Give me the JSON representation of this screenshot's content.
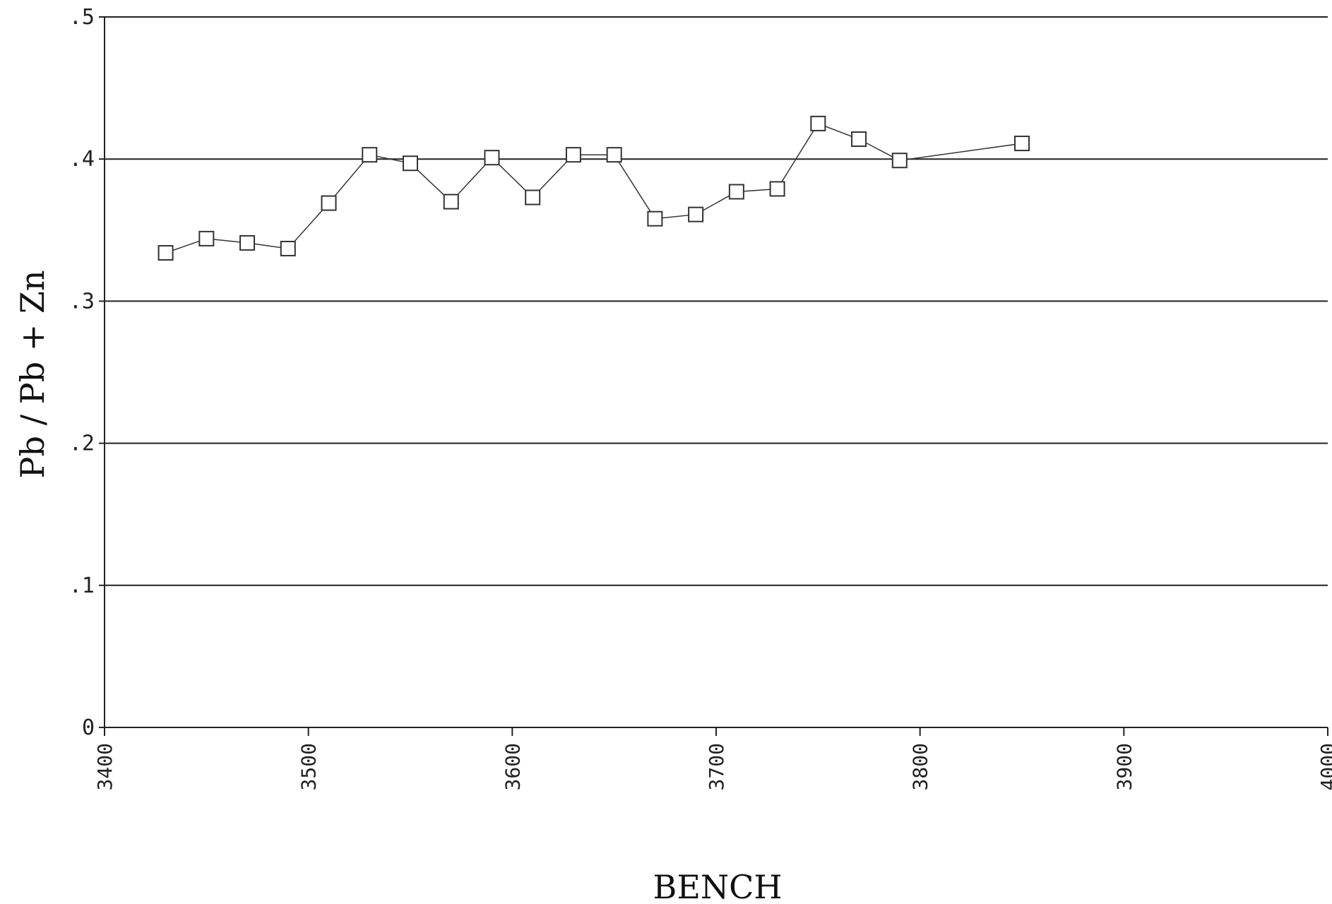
{
  "chart_data": {
    "type": "line",
    "xlabel": "BENCH",
    "ylabel": "Pb / Pb + Zn",
    "xlim": [
      3400,
      4000
    ],
    "ylim": [
      0,
      0.5
    ],
    "x_ticks": [
      "3400",
      "3500",
      "3600",
      "3700",
      "3800",
      "3900",
      "4000"
    ],
    "x_tick_values": [
      3400,
      3500,
      3600,
      3700,
      3800,
      3900,
      4000
    ],
    "y_ticks": [
      "0",
      ".1",
      ".2",
      ".3",
      ".4",
      ".5"
    ],
    "y_tick_values": [
      0,
      0.1,
      0.2,
      0.3,
      0.4,
      0.5
    ],
    "grid": "horizontal",
    "legend": "none",
    "series": [
      {
        "marker": "square",
        "color": "#333333",
        "x": [
          3430,
          3450,
          3470,
          3490,
          3510,
          3530,
          3550,
          3570,
          3590,
          3610,
          3630,
          3650,
          3670,
          3690,
          3710,
          3730,
          3750,
          3770,
          3790,
          3850
        ],
        "y": [
          0.334,
          0.344,
          0.341,
          0.337,
          0.369,
          0.403,
          0.397,
          0.37,
          0.401,
          0.373,
          0.403,
          0.403,
          0.358,
          0.361,
          0.377,
          0.379,
          0.425,
          0.414,
          0.399,
          0.411
        ]
      }
    ]
  }
}
